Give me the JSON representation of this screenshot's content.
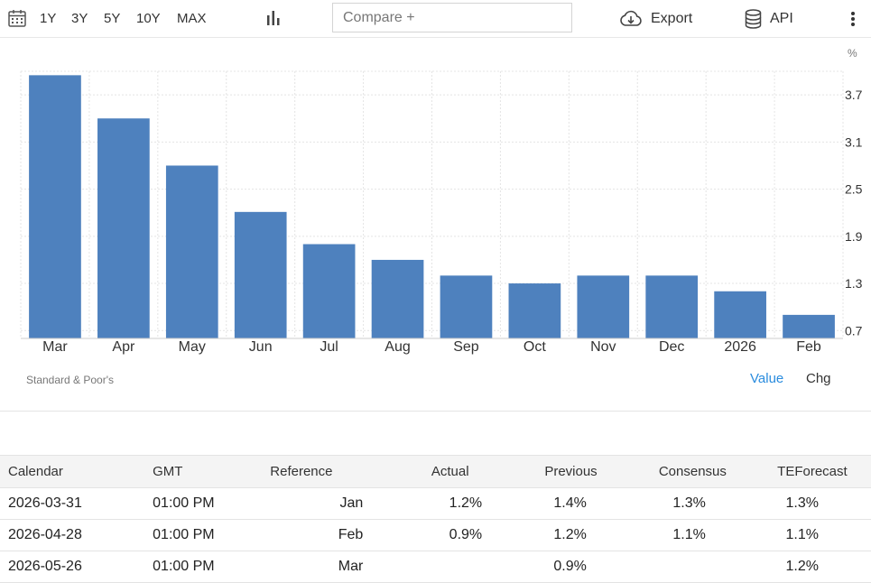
{
  "toolbar": {
    "ranges": [
      "1Y",
      "3Y",
      "5Y",
      "10Y",
      "MAX"
    ],
    "compare_placeholder": "Compare +",
    "export_label": "Export",
    "api_label": "API"
  },
  "chart_data": {
    "type": "bar",
    "categories": [
      "Mar",
      "Apr",
      "May",
      "Jun",
      "Jul",
      "Aug",
      "Sep",
      "Oct",
      "Nov",
      "Dec",
      "2026",
      "Feb"
    ],
    "values": [
      3.95,
      3.4,
      2.8,
      2.21,
      1.8,
      1.6,
      1.4,
      1.3,
      1.4,
      1.4,
      1.2,
      0.9
    ],
    "unit": "%",
    "y_ticks": [
      "3.7",
      "3.1",
      "2.5",
      "1.9",
      "1.3",
      "0.7"
    ],
    "ylim": [
      0.6,
      4.0
    ],
    "bar_color": "#4e81be",
    "grid": true
  },
  "source": "Standard & Poor's",
  "legend": {
    "value_label": "Value",
    "chg_label": "Chg"
  },
  "calendar": {
    "headers": [
      "Calendar",
      "GMT",
      "Reference",
      "Actual",
      "Previous",
      "Consensus",
      "TEForecast"
    ],
    "rows": [
      [
        "2026-03-31",
        "01:00 PM",
        "Jan",
        "1.2%",
        "1.4%",
        "1.3%",
        "1.3%"
      ],
      [
        "2026-04-28",
        "01:00 PM",
        "Feb",
        "0.9%",
        "1.2%",
        "1.1%",
        "1.1%"
      ],
      [
        "2026-05-26",
        "01:00 PM",
        "Mar",
        "",
        "0.9%",
        "",
        "1.2%"
      ]
    ]
  }
}
